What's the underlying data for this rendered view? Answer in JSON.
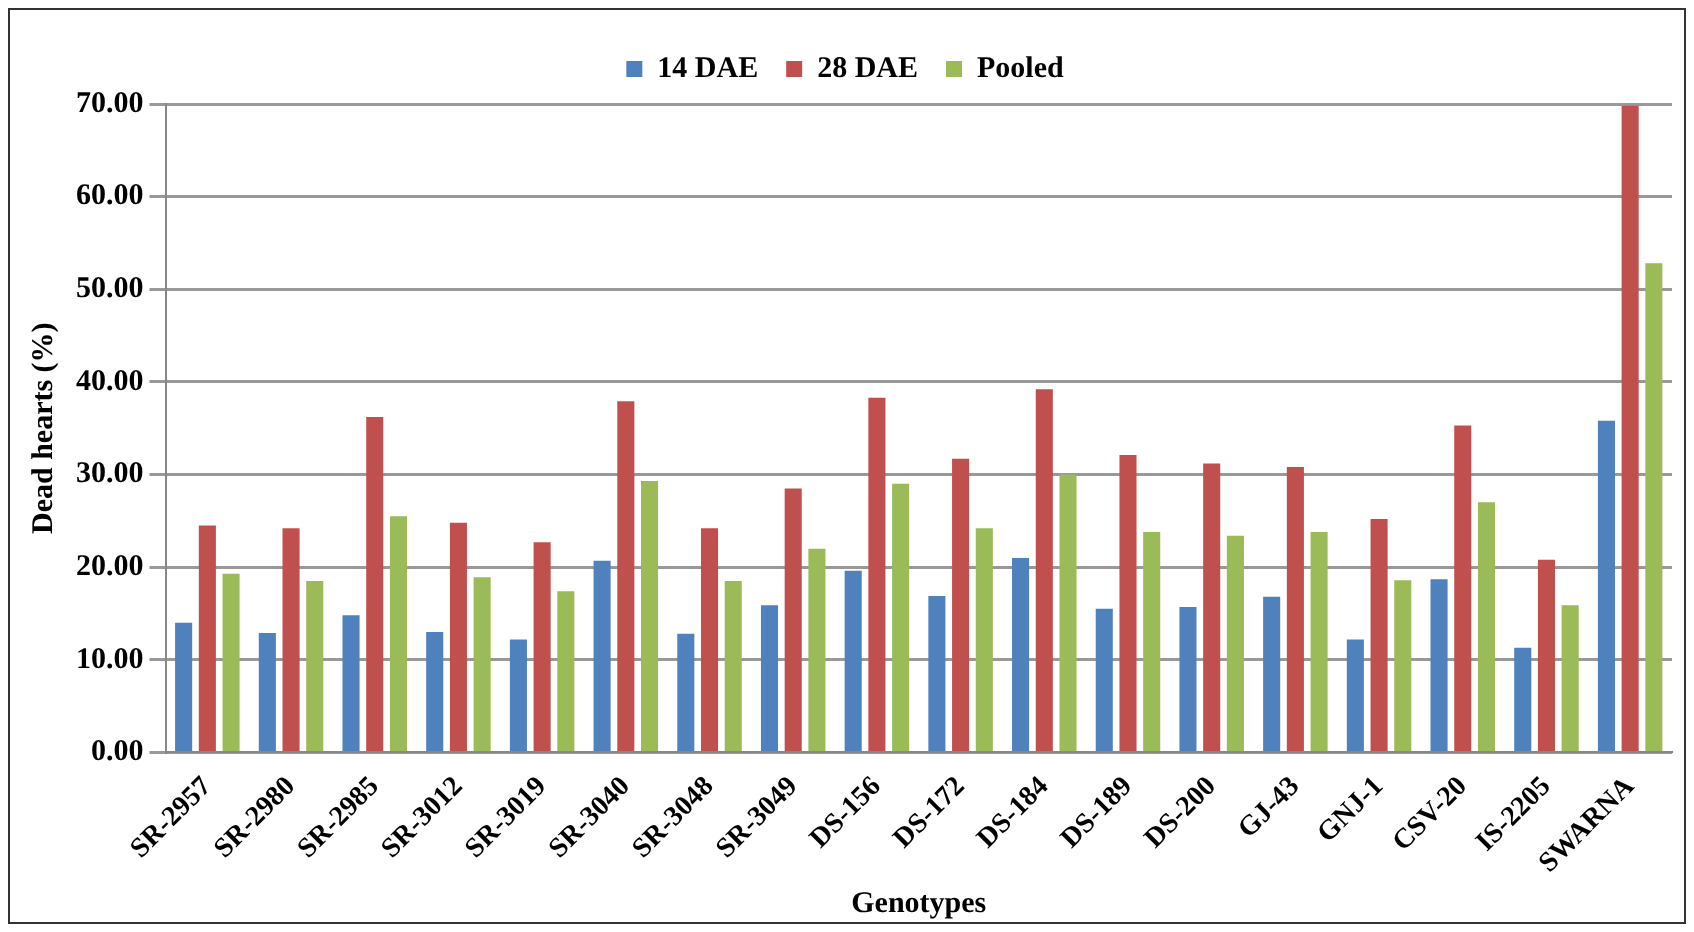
{
  "chart_data": {
    "type": "bar",
    "xlabel": "Genotypes",
    "ylabel": "Dead hearts (%)",
    "categories": [
      "SR-2957",
      "SR-2980",
      "SR-2985",
      "SR-3012",
      "SR-3019",
      "SR-3040",
      "SR-3048",
      "SR-3049",
      "DS-156",
      "DS-172",
      "DS-184",
      "DS-189",
      "DS-200",
      "GJ-43",
      "GNJ-1",
      "CSV-20",
      "IS-2205",
      "SWARNA"
    ],
    "series": [
      {
        "name": "14 DAE",
        "color": "#4f81bd",
        "values": [
          14.0,
          12.9,
          14.8,
          13.0,
          12.2,
          20.7,
          12.8,
          15.9,
          19.6,
          16.9,
          21.0,
          15.5,
          15.7,
          16.8,
          12.2,
          18.7,
          11.3,
          35.8
        ]
      },
      {
        "name": "28 DAE",
        "color": "#c0504d",
        "values": [
          24.5,
          24.2,
          36.2,
          24.8,
          22.7,
          37.9,
          24.2,
          28.5,
          38.3,
          31.7,
          39.2,
          32.1,
          31.2,
          30.8,
          25.2,
          35.3,
          20.8,
          69.8
        ]
      },
      {
        "name": "Pooled",
        "color": "#9bbb59",
        "values": [
          19.3,
          18.5,
          25.5,
          18.9,
          17.4,
          29.3,
          18.5,
          22.0,
          29.0,
          24.2,
          30.0,
          23.8,
          23.4,
          23.8,
          18.6,
          27.0,
          15.9,
          52.8
        ]
      }
    ],
    "ylim": [
      0,
      70
    ],
    "yticks": [
      {
        "value": 0,
        "label": "0.00"
      },
      {
        "value": 10,
        "label": "10.00"
      },
      {
        "value": 20,
        "label": "20.00"
      },
      {
        "value": 30,
        "label": "30.00"
      },
      {
        "value": 40,
        "label": "40.00"
      },
      {
        "value": 50,
        "label": "50.00"
      },
      {
        "value": 60,
        "label": "60.00"
      },
      {
        "value": 70,
        "label": "70.00"
      }
    ],
    "grid": "y",
    "legend": "top"
  }
}
